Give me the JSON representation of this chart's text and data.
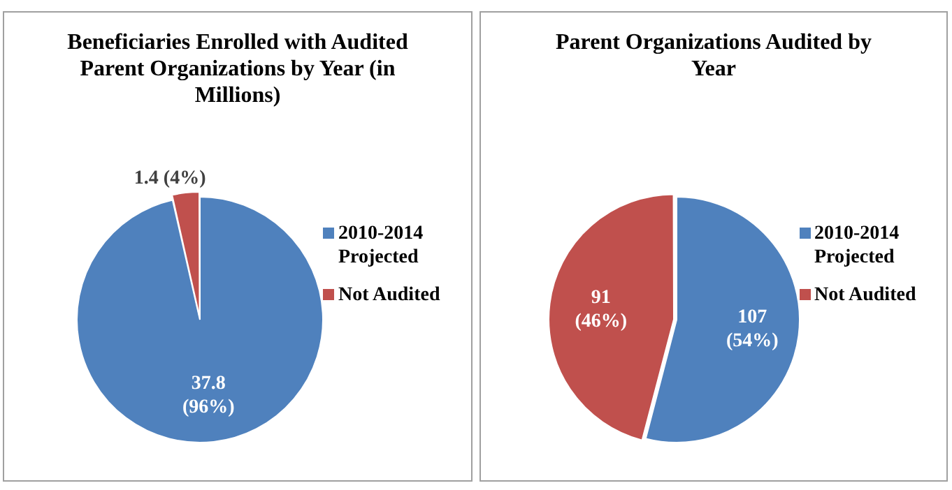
{
  "chart_data": [
    {
      "type": "pie",
      "title": "Beneficiaries Enrolled with Audited Parent Organizations by Year (in Millions)",
      "categories": [
        "2010-2014 Projected",
        "Not Audited"
      ],
      "values": [
        37.8,
        1.4
      ],
      "colors": [
        "#4f81bd",
        "#c0504d"
      ],
      "value_labels": [
        "37.8 (96%)",
        "1.4 (4%)"
      ],
      "legend": "right"
    },
    {
      "type": "pie",
      "title": "Parent Organizations Audited by Year",
      "categories": [
        "2010-2014 Projected",
        "Not Audited"
      ],
      "values": [
        107,
        91
      ],
      "colors": [
        "#4f81bd",
        "#c0504d"
      ],
      "value_labels": [
        "107 (54%)",
        "91 (46%)"
      ],
      "legend": "right"
    }
  ]
}
